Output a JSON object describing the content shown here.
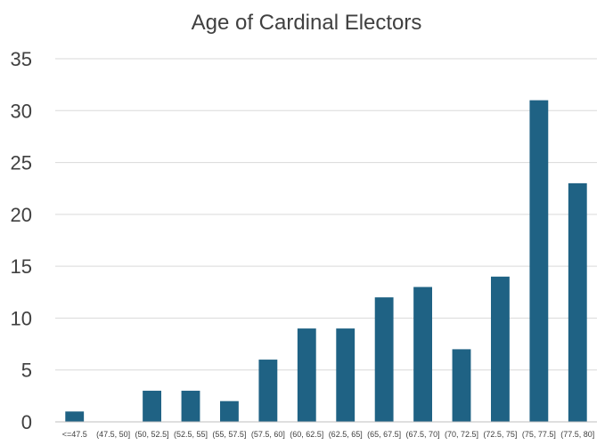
{
  "chart_data": {
    "type": "bar",
    "title": "Age of Cardinal Electors",
    "xlabel": "",
    "ylabel": "",
    "categories": [
      "<=47.5",
      "(47.5, 50]",
      "(50, 52.5]",
      "(52.5, 55]",
      "(55, 57.5]",
      "(57.5, 60]",
      "(60, 62.5]",
      "(62.5, 65]",
      "(65, 67.5]",
      "(67.5, 70]",
      "(70, 72.5]",
      "(72.5, 75]",
      "(75, 77.5]",
      "(77.5, 80]"
    ],
    "values": [
      1,
      0,
      3,
      3,
      2,
      6,
      9,
      9,
      12,
      13,
      7,
      14,
      31,
      23
    ],
    "ylim": [
      0,
      35
    ],
    "yticks": [
      0,
      5,
      10,
      15,
      20,
      25,
      30,
      35
    ],
    "grid": true,
    "legend": "none",
    "bar_color": "#1f6284"
  }
}
